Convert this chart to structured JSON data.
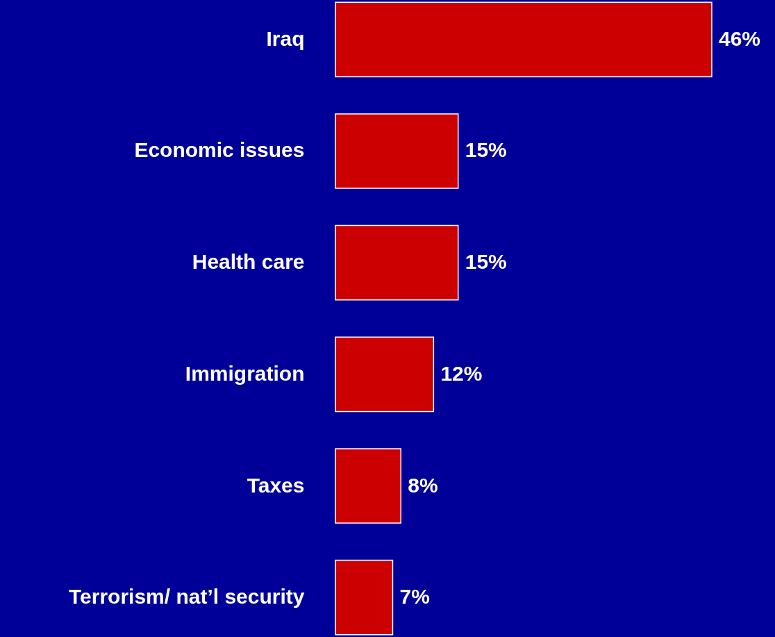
{
  "chart_data": {
    "type": "bar",
    "orientation": "horizontal",
    "categories": [
      "Iraq",
      "Economic issues",
      "Health care",
      "Immigration",
      "Taxes",
      "Terrorism/ nat’l security"
    ],
    "values": [
      46,
      15,
      15,
      12,
      8,
      7
    ],
    "color": "#cc0000",
    "value_labels": [
      "46%",
      "15%",
      "15%",
      "12%",
      "8%",
      "7%"
    ]
  }
}
